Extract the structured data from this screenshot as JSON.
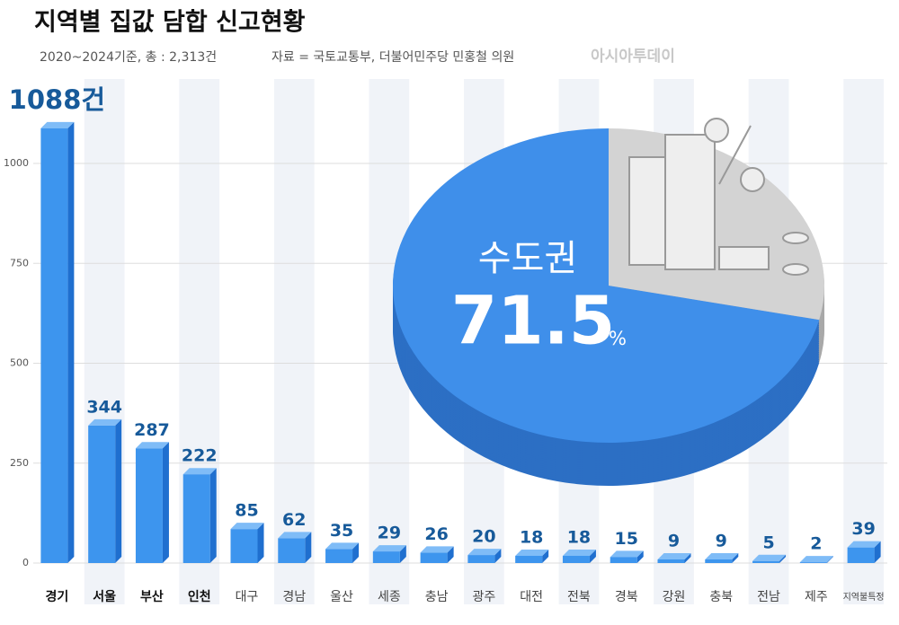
{
  "title": "지역별 집값 담합 신고현황",
  "subtitle": "2020~2024기준, 총 : 2,313건",
  "source": "자료 = 국토교통부, 더불어민주당 민홍철 의원",
  "logo": "아시아투데이",
  "chart_data": [
    {
      "type": "bar",
      "categories": [
        "경기",
        "서울",
        "부산",
        "인천",
        "대구",
        "경남",
        "울산",
        "세종",
        "충남",
        "광주",
        "대전",
        "전북",
        "경북",
        "강원",
        "충북",
        "전남",
        "제주",
        "지역불특정"
      ],
      "values": [
        1088,
        344,
        287,
        222,
        85,
        62,
        35,
        29,
        26,
        20,
        18,
        18,
        15,
        9,
        9,
        5,
        2,
        39
      ],
      "value_labels": [
        "1088건",
        "344",
        "287",
        "222",
        "85",
        "62",
        "35",
        "29",
        "26",
        "20",
        "18",
        "18",
        "15",
        "9",
        "9",
        "5",
        "2",
        "39"
      ],
      "color": "#3d95ee",
      "ylim": [
        0,
        1200
      ],
      "yticks": [
        0,
        250,
        500,
        750,
        1000
      ],
      "grid": true
    },
    {
      "type": "pie",
      "categories": [
        "수도권",
        null
      ],
      "values": [
        71.5,
        28.5
      ],
      "value_labels": [
        "71.5",
        null
      ],
      "unit": "%",
      "colors": [
        "#3f8fea",
        "#d3d3d3"
      ]
    }
  ]
}
